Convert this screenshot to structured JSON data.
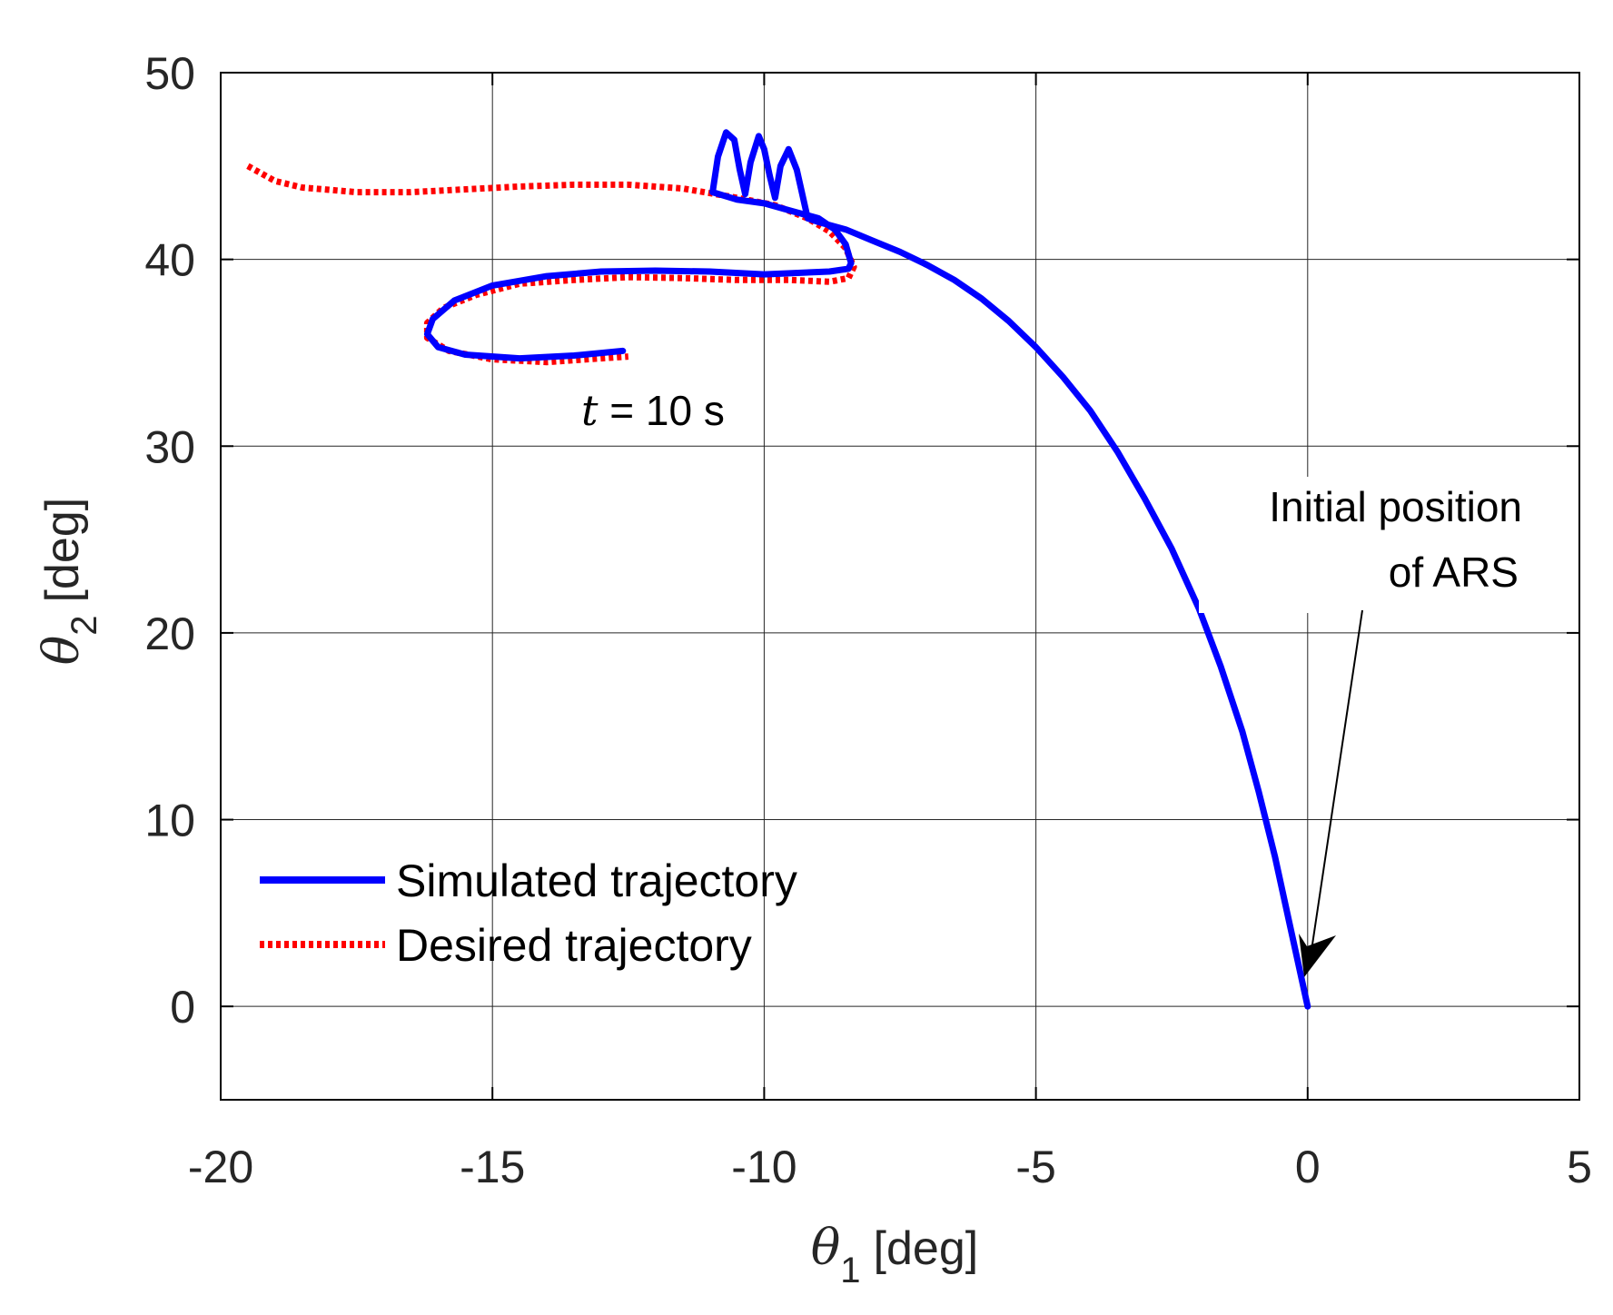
{
  "chart_data": {
    "type": "line",
    "title": "",
    "xlabel": {
      "symbol": "θ",
      "subscript": "1",
      "unit": "[deg]"
    },
    "ylabel": {
      "symbol": "θ",
      "subscript": "2",
      "unit": "[deg]"
    },
    "xlim": [
      -20,
      5
    ],
    "ylim": [
      -5,
      50
    ],
    "xticks": [
      -20,
      -15,
      -10,
      -5,
      0,
      5
    ],
    "yticks": [
      0,
      10,
      20,
      30,
      40,
      50
    ],
    "xtick_labels": [
      "-20",
      "-15",
      "-10",
      "-5",
      "0",
      "5"
    ],
    "ytick_labels": [
      "0",
      "10",
      "20",
      "30",
      "40",
      "50"
    ],
    "grid": true,
    "legend_position": "bottom-left",
    "series": [
      {
        "name": "Simulated trajectory",
        "color": "#0000FF",
        "style": "solid",
        "points": [
          [
            0,
            0
          ],
          [
            -0.3,
            4
          ],
          [
            -0.6,
            8
          ],
          [
            -0.9,
            11.5
          ],
          [
            -1.2,
            14.7
          ],
          [
            -1.6,
            18.2
          ],
          [
            -2.0,
            21.3
          ],
          [
            -2.5,
            24.5
          ],
          [
            -3.0,
            27.2
          ],
          [
            -3.5,
            29.7
          ],
          [
            -4.0,
            31.9
          ],
          [
            -4.5,
            33.7
          ],
          [
            -5.0,
            35.3
          ],
          [
            -5.5,
            36.7
          ],
          [
            -6.0,
            37.9
          ],
          [
            -6.5,
            38.9
          ],
          [
            -7.0,
            39.7
          ],
          [
            -7.5,
            40.4
          ],
          [
            -8.0,
            41.0
          ],
          [
            -8.5,
            41.6
          ],
          [
            -9.0,
            42.0
          ],
          [
            -9.2,
            42.2
          ],
          [
            -9.4,
            44.8
          ],
          [
            -9.55,
            45.9
          ],
          [
            -9.7,
            45.0
          ],
          [
            -9.8,
            43.3
          ],
          [
            -9.9,
            44.5
          ],
          [
            -10.0,
            45.9
          ],
          [
            -10.1,
            46.6
          ],
          [
            -10.25,
            45.2
          ],
          [
            -10.35,
            43.5
          ],
          [
            -10.45,
            44.8
          ],
          [
            -10.55,
            46.4
          ],
          [
            -10.7,
            46.8
          ],
          [
            -10.85,
            45.5
          ],
          [
            -10.95,
            43.6
          ],
          [
            -10.5,
            43.2
          ],
          [
            -10.0,
            43.0
          ],
          [
            -9.5,
            42.6
          ],
          [
            -9.0,
            42.2
          ],
          [
            -8.7,
            41.6
          ],
          [
            -8.5,
            40.8
          ],
          [
            -8.4,
            39.8
          ],
          [
            -8.45,
            39.5
          ],
          [
            -8.8,
            39.35
          ],
          [
            -10.0,
            39.2
          ],
          [
            -11.0,
            39.35
          ],
          [
            -12.0,
            39.4
          ],
          [
            -13.0,
            39.35
          ],
          [
            -14.0,
            39.1
          ],
          [
            -15.0,
            38.6
          ],
          [
            -15.7,
            37.8
          ],
          [
            -16.1,
            36.8
          ],
          [
            -16.2,
            36.0
          ],
          [
            -16.0,
            35.3
          ],
          [
            -15.5,
            34.9
          ],
          [
            -14.5,
            34.7
          ],
          [
            -13.5,
            34.85
          ],
          [
            -12.6,
            35.1
          ]
        ]
      },
      {
        "name": "Desired trajectory",
        "color": "#FF0000",
        "style": "dotted",
        "points": [
          [
            -19.5,
            45.0
          ],
          [
            -19.0,
            44.2
          ],
          [
            -18.5,
            43.85
          ],
          [
            -17.5,
            43.6
          ],
          [
            -16.5,
            43.6
          ],
          [
            -15.5,
            43.75
          ],
          [
            -14.5,
            43.9
          ],
          [
            -13.5,
            44.0
          ],
          [
            -12.5,
            44.0
          ],
          [
            -11.5,
            43.8
          ],
          [
            -10.5,
            43.3
          ],
          [
            -9.8,
            42.9
          ],
          [
            -9.2,
            42.2
          ],
          [
            -8.8,
            41.5
          ],
          [
            -8.5,
            40.6
          ],
          [
            -8.35,
            39.6
          ],
          [
            -8.45,
            39.0
          ],
          [
            -8.8,
            38.8
          ],
          [
            -9.5,
            38.9
          ],
          [
            -10.5,
            38.9
          ],
          [
            -11.5,
            39.0
          ],
          [
            -12.5,
            39.05
          ],
          [
            -13.5,
            38.9
          ],
          [
            -14.5,
            38.7
          ],
          [
            -15.3,
            38.1
          ],
          [
            -15.9,
            37.4
          ],
          [
            -16.2,
            36.6
          ],
          [
            -16.2,
            35.8
          ],
          [
            -15.8,
            35.1
          ],
          [
            -15.0,
            34.65
          ],
          [
            -14.0,
            34.5
          ],
          [
            -13.0,
            34.7
          ],
          [
            -12.5,
            34.8
          ]
        ]
      }
    ],
    "annotations": [
      {
        "text_parts": [
          "t",
          " = 10 s"
        ],
        "at": [
          -12.6,
          35.1
        ]
      },
      {
        "lines": [
          "Initial position",
          "of ARS"
        ],
        "arrow_to": [
          0,
          0
        ]
      }
    ]
  }
}
